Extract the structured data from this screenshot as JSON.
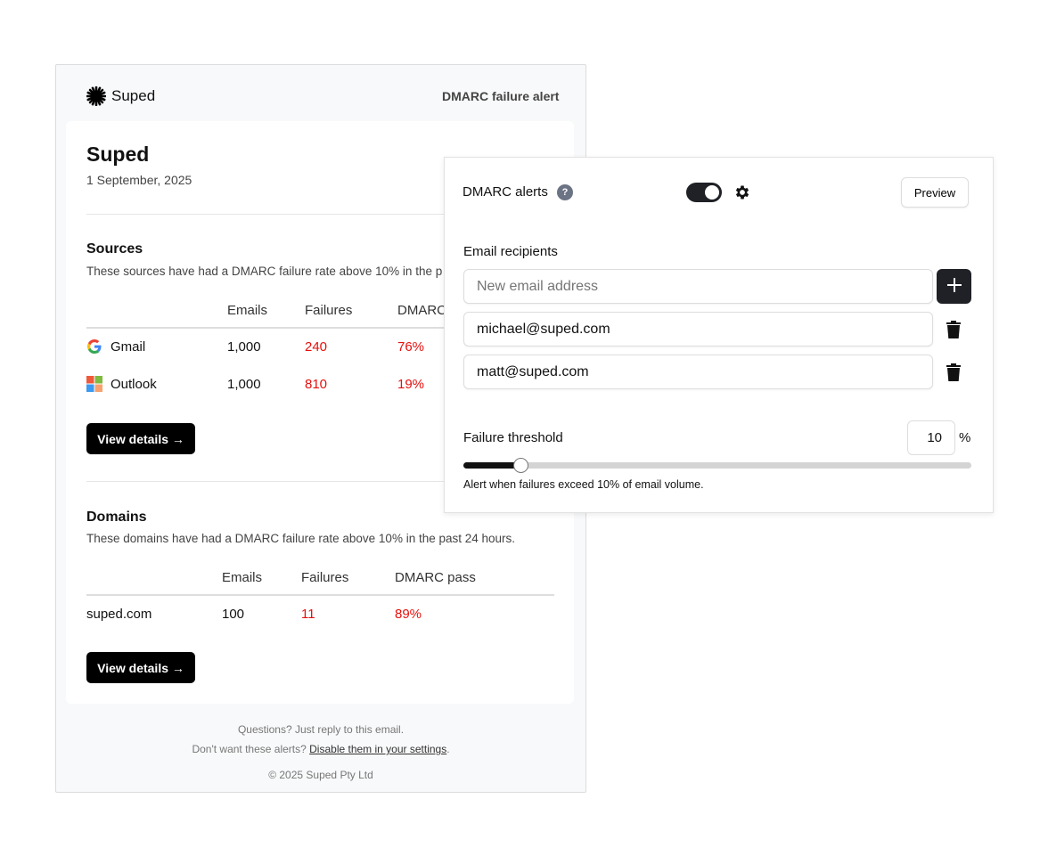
{
  "email": {
    "brand": "Suped",
    "alert_title": "DMARC failure alert",
    "heading": "Suped",
    "date": "1 September, 2025",
    "sources": {
      "title": "Sources",
      "description": "These sources have had a DMARC failure rate above 10% in the p",
      "columns": [
        "Emails",
        "Failures",
        "DMARC"
      ],
      "rows": [
        {
          "name": "Gmail",
          "icon": "google-icon",
          "emails": "1,000",
          "failures": "240",
          "pass": "76%"
        },
        {
          "name": "Outlook",
          "icon": "microsoft-icon",
          "emails": "1,000",
          "failures": "810",
          "pass": "19%"
        }
      ],
      "button": "View details →"
    },
    "domains": {
      "title": "Domains",
      "description": "These domains have had a DMARC failure rate above 10% in the past 24 hours.",
      "columns": [
        "Emails",
        "Failures",
        "DMARC pass"
      ],
      "rows": [
        {
          "name": "suped.com",
          "emails": "100",
          "failures": "11",
          "pass": "89%"
        }
      ],
      "button": "View details →"
    },
    "footer": {
      "questions": "Questions? Just reply to this email.",
      "disable_prefix": "Don't want these alerts? ",
      "disable_link": "Disable them in your settings",
      "disable_suffix": ".",
      "copyright": "© 2025 Suped Pty Ltd"
    }
  },
  "panel": {
    "title": "DMARC alerts",
    "help": "?",
    "enabled": true,
    "preview": "Preview",
    "recipients_label": "Email recipients",
    "new_placeholder": "New email address",
    "recipients": [
      "michael@suped.com",
      "matt@suped.com"
    ],
    "threshold_label": "Failure threshold",
    "threshold_value": "10",
    "threshold_unit": "%",
    "threshold_percent": 10,
    "threshold_note": "Alert when failures exceed 10% of email volume."
  },
  "colors": {
    "failure": "#e5100d",
    "dark": "#1f2127"
  }
}
